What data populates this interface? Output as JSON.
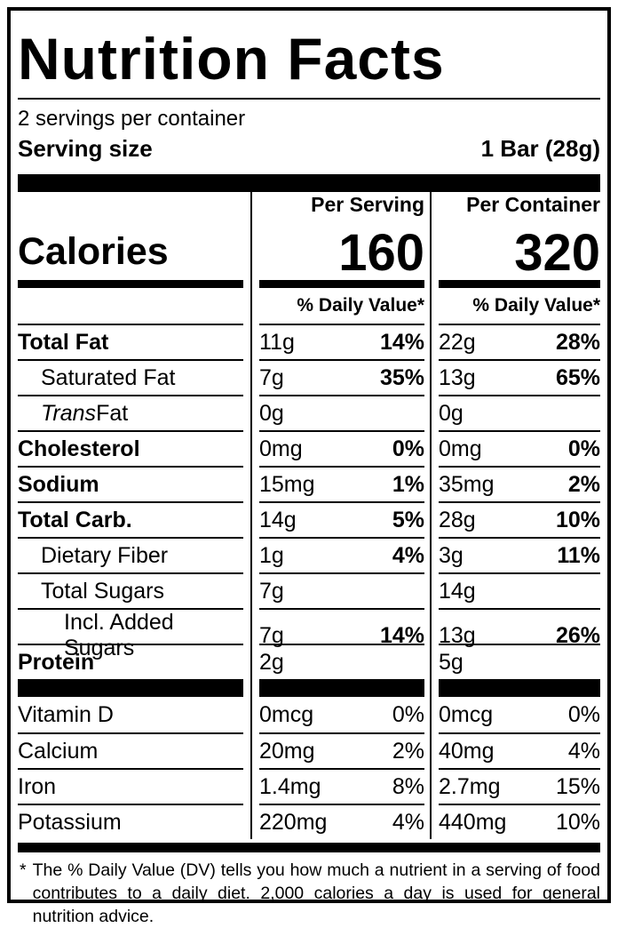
{
  "label": {
    "title": "Nutrition Facts",
    "servings_per_container": "2 servings per container",
    "serving_size_label": "Serving size",
    "serving_size_value": "1 Bar (28g)",
    "calories_label": "Calories",
    "columns": {
      "per_serving_header": "Per Serving",
      "per_container_header": "Per Container"
    },
    "calories": {
      "per_serving": "160",
      "per_container": "320"
    },
    "daily_value_header": "% Daily Value*",
    "main_rows": [
      {
        "name": "Total Fat",
        "bold": true,
        "indent": 0,
        "ps_amount": "11g",
        "ps_dv": "14%",
        "pc_amount": "22g",
        "pc_dv": "28%"
      },
      {
        "name": "Saturated Fat",
        "bold": false,
        "indent": 1,
        "ps_amount": "7g",
        "ps_dv": "35%",
        "pc_amount": "13g",
        "pc_dv": "65%"
      },
      {
        "name_italic": "Trans",
        "name": " Fat",
        "bold": false,
        "indent": 1,
        "ps_amount": "0g",
        "ps_dv": "",
        "pc_amount": "0g",
        "pc_dv": ""
      },
      {
        "name": "Cholesterol",
        "bold": true,
        "indent": 0,
        "ps_amount": "0mg",
        "ps_dv": "0%",
        "pc_amount": "0mg",
        "pc_dv": "0%"
      },
      {
        "name": "Sodium",
        "bold": true,
        "indent": 0,
        "ps_amount": "15mg",
        "ps_dv": "1%",
        "pc_amount": "35mg",
        "pc_dv": "2%"
      },
      {
        "name": "Total Carb.",
        "bold": true,
        "indent": 0,
        "ps_amount": "14g",
        "ps_dv": "5%",
        "pc_amount": "28g",
        "pc_dv": "10%"
      },
      {
        "name": "Dietary Fiber",
        "bold": false,
        "indent": 1,
        "ps_amount": "1g",
        "ps_dv": "4%",
        "pc_amount": "3g",
        "pc_dv": "11%"
      },
      {
        "name": "Total Sugars",
        "bold": false,
        "indent": 1,
        "ps_amount": "7g",
        "ps_dv": "",
        "pc_amount": "14g",
        "pc_dv": ""
      },
      {
        "name": "Incl. Added Sugars",
        "bold": false,
        "indent": 2,
        "ps_amount": "7g",
        "ps_dv": "14%",
        "pc_amount": "13g",
        "pc_dv": "26%"
      },
      {
        "name": "Protein",
        "bold": true,
        "indent": 0,
        "ps_amount": "2g",
        "ps_dv": "",
        "pc_amount": "5g",
        "pc_dv": ""
      }
    ],
    "vitamin_rows": [
      {
        "name": "Vitamin D",
        "bold": false,
        "indent": 0,
        "ps_amount": "0mcg",
        "ps_dv": "0%",
        "pc_amount": "0mcg",
        "pc_dv": "0%"
      },
      {
        "name": "Calcium",
        "bold": false,
        "indent": 0,
        "ps_amount": "20mg",
        "ps_dv": "2%",
        "pc_amount": "40mg",
        "pc_dv": "4%"
      },
      {
        "name": "Iron",
        "bold": false,
        "indent": 0,
        "ps_amount": "1.4mg",
        "ps_dv": "8%",
        "pc_amount": "2.7mg",
        "pc_dv": "15%"
      },
      {
        "name": "Potassium",
        "bold": false,
        "indent": 0,
        "ps_amount": "220mg",
        "ps_dv": "4%",
        "pc_amount": "440mg",
        "pc_dv": "10%"
      }
    ],
    "footnote": {
      "marker": "*",
      "text": "The % Daily Value (DV) tells you how much a nutrient in a serving of food contributes to a daily diet. 2,000 calories a day is used for general nutrition advice."
    }
  }
}
